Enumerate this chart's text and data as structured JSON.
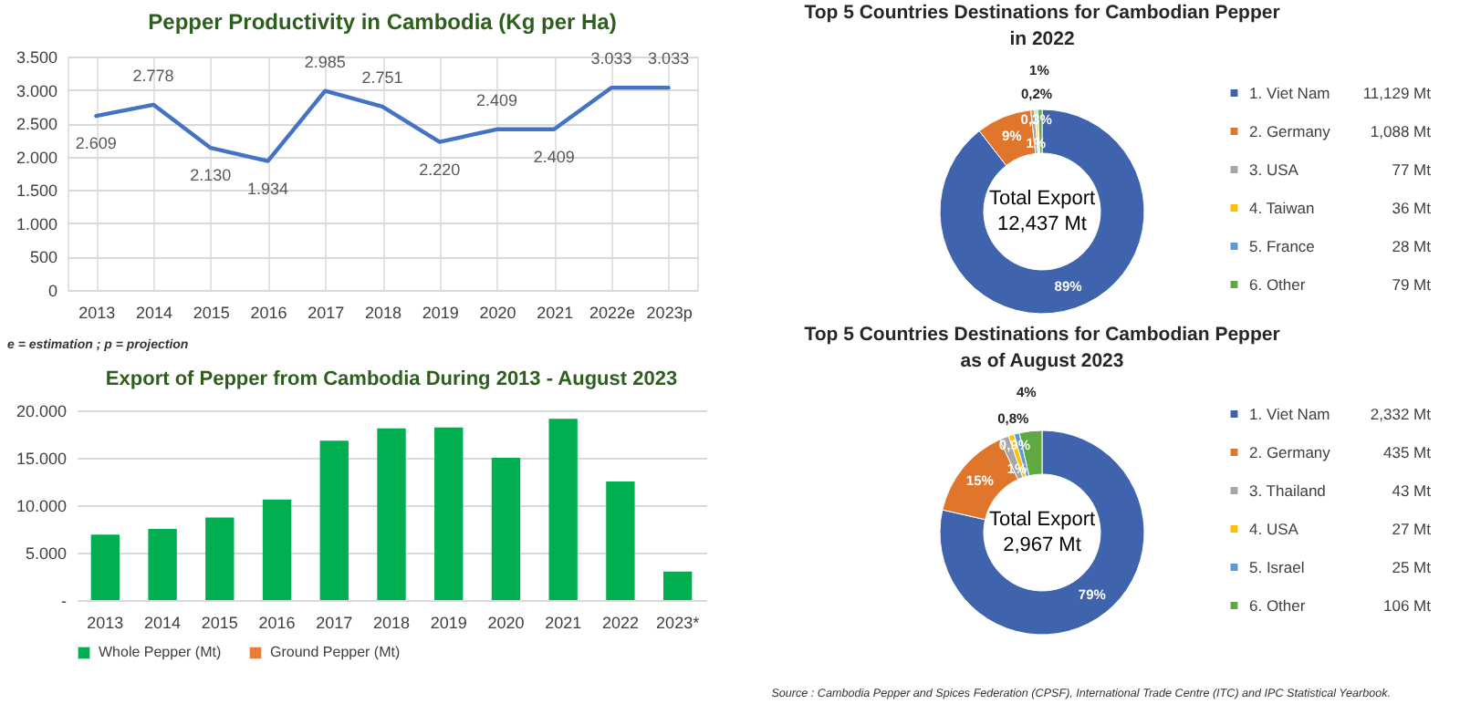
{
  "chart_data": [
    {
      "type": "line",
      "title": "Pepper Productivity in Cambodia (Kg per Ha)",
      "categories": [
        "2013",
        "2014",
        "2015",
        "2016",
        "2017",
        "2018",
        "2019",
        "2020",
        "2021",
        "2022e",
        "2023p"
      ],
      "series": [
        {
          "color": "#4472c4",
          "values": [
            2609,
            2778,
            2130,
            1934,
            2985,
            2751,
            2220,
            2409,
            2409,
            3033,
            3033
          ],
          "value_labels": [
            "2.609",
            "2.778",
            "2.130",
            "1.934",
            "2.985",
            "2.751",
            "2.220",
            "2.409",
            "2.409",
            "3.033",
            "3.033"
          ]
        }
      ],
      "ylim": [
        0,
        3500
      ],
      "yticks": [
        0,
        500,
        {
          "value": 1000,
          "label": "1.000"
        },
        {
          "value": 1500,
          "label": "1.500"
        },
        {
          "value": 2000,
          "label": "2.000"
        },
        {
          "value": 2500,
          "label": "2.500"
        },
        {
          "value": 3000,
          "label": "3.000"
        },
        {
          "value": 3500,
          "label": "3.500"
        }
      ],
      "grid": true,
      "annotations": [
        "e = estimation ; p = projection"
      ]
    },
    {
      "type": "donut",
      "title": "Top 5 Countries Destinations for Cambodian Pepper in 2022",
      "categories": [
        "1. Viet Nam",
        "2. Germany",
        "3. USA",
        "4. Taiwan",
        "5. France",
        "6. Other"
      ],
      "values": [
        89.48,
        8.75,
        0.62,
        0.29,
        0.23,
        0.63
      ],
      "colors": [
        "#3f64ad",
        "#e0762c",
        "#a5a5a5",
        "#ffc000",
        "#5b9bd5",
        "#5fa843"
      ],
      "value_labels": [
        "89%",
        "9%",
        "1%",
        "0,3%",
        "0,2%",
        "1%"
      ],
      "legend": "right",
      "annotations": [
        "Total Export\n12,437 Mt",
        {
          "text": "11,129 Mt",
          "x": "1. Viet Nam"
        },
        {
          "text": "1,088 Mt",
          "x": "2. Germany"
        },
        {
          "text": "77 Mt",
          "x": "3. USA"
        },
        {
          "text": "36 Mt",
          "x": "4. Taiwan"
        },
        {
          "text": "28 Mt",
          "x": "5. France"
        },
        {
          "text": "79 Mt",
          "x": "6. Other"
        }
      ]
    },
    {
      "type": "bar",
      "title": "Export of Pepper from Cambodia During 2013 - August 2023",
      "categories": [
        "2013",
        "2014",
        "2015",
        "2016",
        "2017",
        "2018",
        "2019",
        "2020",
        "2021",
        "2022",
        "2023*"
      ],
      "series": [
        {
          "name": "Whole Pepper (Mt)",
          "color": "#00b050",
          "values": [
            6900,
            7500,
            8700,
            10600,
            16800,
            18100,
            18200,
            15000,
            19100,
            12500,
            3000
          ]
        },
        {
          "name": "Ground Pepper (Mt)",
          "color": "#ed7d31",
          "values": [
            null,
            null,
            null,
            null,
            null,
            null,
            null,
            null,
            null,
            null,
            null
          ]
        }
      ],
      "ylim": [
        0,
        20000
      ],
      "yticks": [
        {
          "value": 0,
          "label": "-"
        },
        {
          "value": 5000,
          "label": "5.000"
        },
        {
          "value": 10000,
          "label": "10.000"
        },
        {
          "value": 15000,
          "label": "15.000"
        },
        {
          "value": 20000,
          "label": "20.000"
        }
      ],
      "grid": "y",
      "legend": "bottom"
    },
    {
      "type": "donut",
      "title": "Top 5 Countries Destinations for Cambodian Pepper as of August 2023",
      "categories": [
        "1. Viet Nam",
        "2. Germany",
        "3. Thailand",
        "4. USA",
        "5. Israel",
        "6. Other"
      ],
      "values": [
        78.57,
        14.66,
        1.45,
        0.91,
        0.84,
        3.57
      ],
      "colors": [
        "#3f64ad",
        "#e0762c",
        "#a5a5a5",
        "#ffc000",
        "#5b9bd5",
        "#5fa843"
      ],
      "value_labels": [
        "79%",
        "15%",
        "1%",
        "0,9%",
        "0,8%",
        "4%"
      ],
      "legend": "right",
      "annotations": [
        "Total Export\n2,967 Mt",
        {
          "text": "2,332 Mt",
          "x": "1. Viet Nam"
        },
        {
          "text": "435 Mt",
          "x": "2. Germany"
        },
        {
          "text": "43 Mt",
          "x": "3. Thailand"
        },
        {
          "text": "27 Mt",
          "x": "4. USA"
        },
        {
          "text": "25 Mt",
          "x": "5. Israel"
        },
        {
          "text": "106 Mt",
          "x": "6. Other"
        },
        "Source : Cambodia Pepper and Spices Federation (CPSF), International Trade Centre (ITC) and IPC Statistical Yearbook."
      ]
    }
  ]
}
